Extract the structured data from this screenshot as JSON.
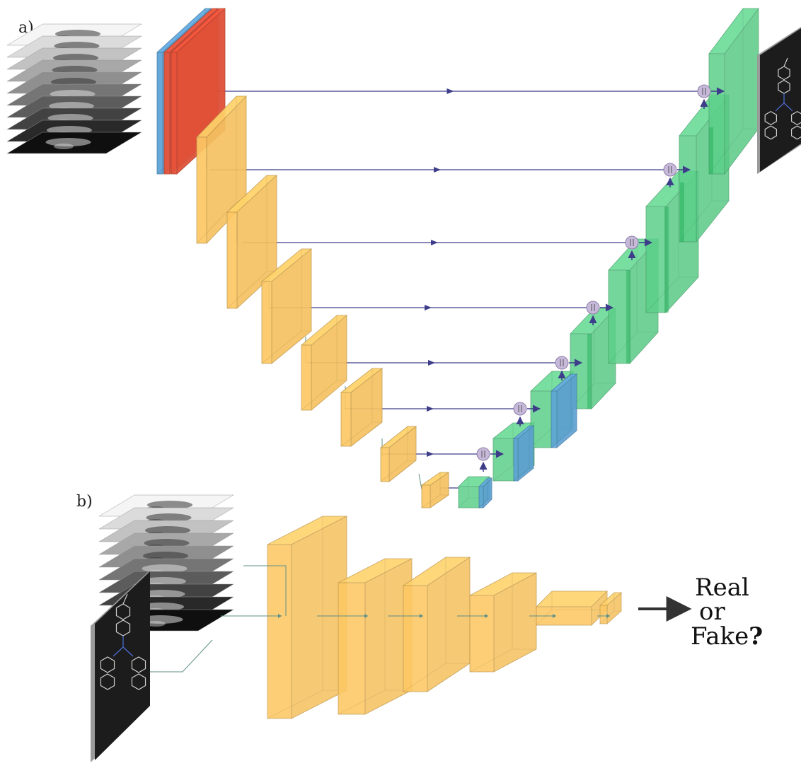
{
  "panels": {
    "a": {
      "label": "a)"
    },
    "b": {
      "label": "b)"
    }
  },
  "output": {
    "line1": "Real",
    "line2": "or",
    "line3": "Fake",
    "question_mark": "?"
  },
  "colors": {
    "encoder": "#fdc864",
    "decoder": "#5cd08a",
    "skip_blue": "#5ea4d8",
    "first_red": "#e8533a",
    "arrow": "#3d3d8a",
    "concat_node": "#c7b9da",
    "image_dark": "#1c1c1c"
  },
  "icons": {
    "concat": "concatenation-node-icon",
    "arrow": "right-arrow-icon"
  }
}
